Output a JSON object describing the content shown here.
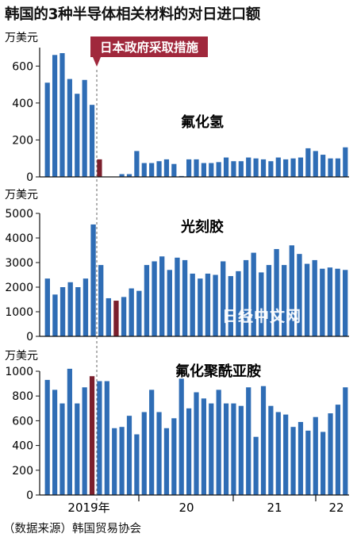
{
  "title": "韩国的3种半导体相关材料的对日进口额",
  "source": "（数据来源）韩国贸易协会",
  "watermark": "日经中文网",
  "annotation": "日本政府采取措施",
  "colors": {
    "bar": "#2f6db5",
    "highlight": "#7b1f2c",
    "label_bg": "#a0283c",
    "watermark": "#ffffff"
  },
  "x_tick_labels": [
    "2019年",
    "20",
    "21",
    "22"
  ],
  "chart_data": [
    {
      "type": "bar",
      "title": "氟化氢",
      "ylabel": "万美元",
      "ylim": [
        0,
        700
      ],
      "yticks": [
        "0",
        "200",
        "400",
        "600"
      ],
      "highlight_index": 7,
      "values": [
        510,
        660,
        670,
        530,
        450,
        525,
        390,
        95,
        0,
        0,
        15,
        15,
        140,
        75,
        75,
        85,
        95,
        70,
        5,
        95,
        95,
        75,
        75,
        80,
        105,
        85,
        85,
        105,
        100,
        95,
        85,
        105,
        95,
        100,
        105,
        155,
        140,
        120,
        100,
        100,
        160
      ]
    },
    {
      "type": "bar",
      "title": "光刻胶",
      "ylabel": "万美元",
      "ylim": [
        0,
        5000
      ],
      "yticks": [
        "0",
        "1000",
        "2000",
        "3000",
        "4000",
        "5000"
      ],
      "highlight_index": 9,
      "values": [
        2350,
        1700,
        2000,
        2200,
        2000,
        2350,
        4550,
        2900,
        1550,
        1450,
        1600,
        1950,
        1850,
        2900,
        3050,
        3250,
        2700,
        3200,
        3100,
        2550,
        2350,
        2550,
        2500,
        3050,
        2450,
        2650,
        3100,
        3400,
        2600,
        2900,
        3550,
        2900,
        3700,
        3350,
        2950,
        3100,
        2750,
        2800,
        2750,
        2700
      ]
    },
    {
      "type": "bar",
      "title": "氟化聚酰亚胺",
      "ylabel": "万美元",
      "ylim": [
        0,
        1000
      ],
      "yticks": [
        "0",
        "200",
        "400",
        "600",
        "800",
        "1000"
      ],
      "highlight_index": 6,
      "values": [
        930,
        850,
        740,
        1020,
        740,
        870,
        960,
        920,
        920,
        540,
        550,
        640,
        490,
        670,
        850,
        670,
        540,
        620,
        940,
        700,
        830,
        780,
        740,
        850,
        740,
        740,
        720,
        870,
        470,
        880,
        720,
        670,
        650,
        550,
        590,
        520,
        630,
        510,
        660,
        730,
        870
      ]
    }
  ]
}
